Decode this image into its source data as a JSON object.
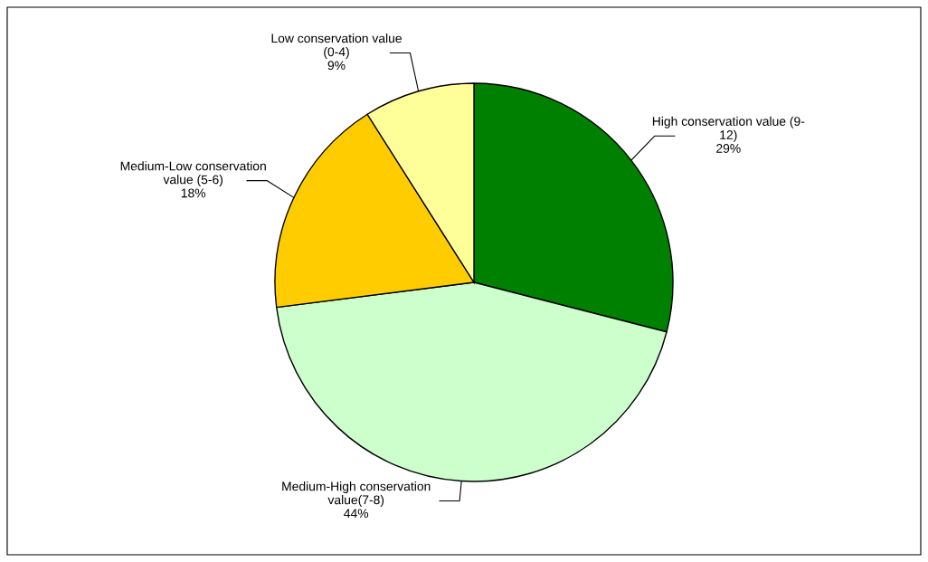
{
  "chart_data": {
    "type": "pie",
    "categories": [
      "High conservation value (9-\n12)",
      "Medium-High conservation\nvalue(7-8)",
      "Medium-Low conservation\nvalue (5-6)",
      "Low conservation value\n(0-4)"
    ],
    "values": [
      29,
      44,
      18,
      9
    ],
    "colors": [
      "#008000",
      "#ccffcc",
      "#ffcc00",
      "#ffff99"
    ],
    "value_labels": [
      "29%",
      "44%",
      "18%",
      "9%"
    ],
    "legend": false
  }
}
